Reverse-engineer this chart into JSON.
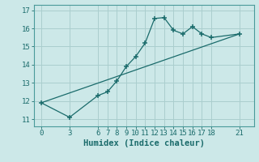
{
  "xlabel": "Humidex (Indice chaleur)",
  "background_color": "#cce8e8",
  "line_color": "#1a6b6b",
  "grid_color": "#aacece",
  "spine_color": "#4a9a9a",
  "line1_x": [
    0,
    3,
    6,
    7,
    8,
    9,
    10,
    11,
    12,
    13,
    14,
    15,
    16,
    17,
    18,
    21
  ],
  "line1_y": [
    11.9,
    11.1,
    12.3,
    12.5,
    13.1,
    13.9,
    14.45,
    15.2,
    16.55,
    16.6,
    15.9,
    15.7,
    16.1,
    15.7,
    15.5,
    15.7
  ],
  "line2_x": [
    0,
    21
  ],
  "line2_y": [
    11.9,
    15.7
  ],
  "xticks": [
    0,
    3,
    6,
    7,
    8,
    9,
    10,
    11,
    12,
    13,
    14,
    15,
    16,
    17,
    18,
    21
  ],
  "yticks": [
    11,
    12,
    13,
    14,
    15,
    16,
    17
  ],
  "ylim": [
    10.6,
    17.3
  ],
  "xlim": [
    -0.8,
    22.5
  ],
  "tick_fontsize": 6.5,
  "xlabel_fontsize": 7.5
}
